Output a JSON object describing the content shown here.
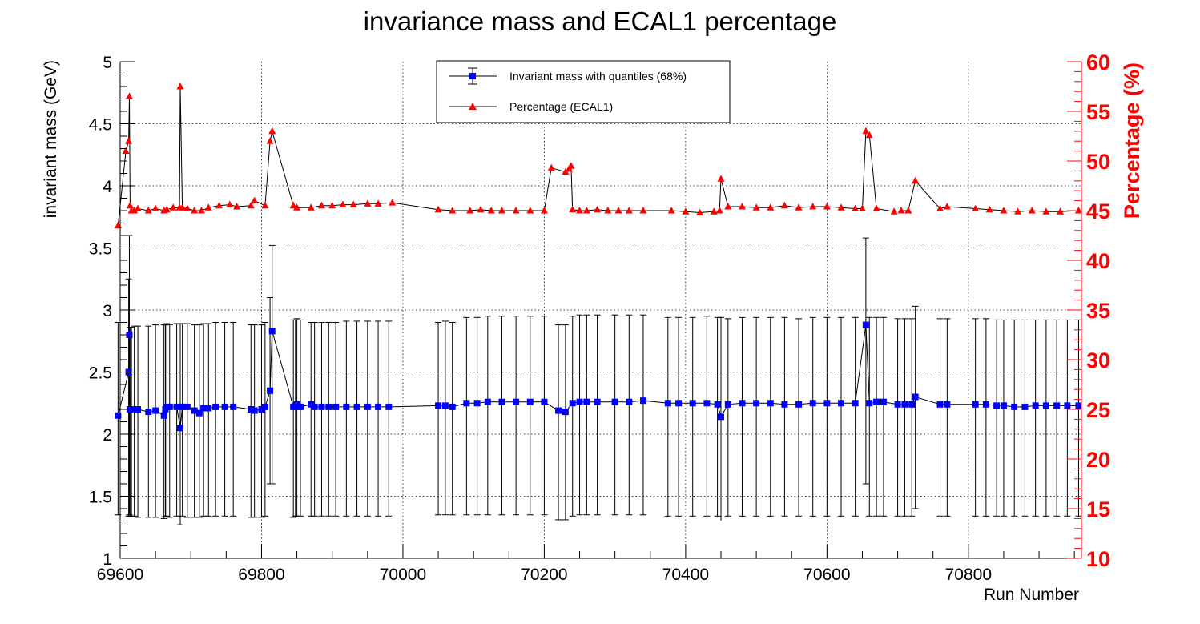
{
  "chart_data": {
    "type": "line",
    "title": "invariance mass and ECAL1 percentage",
    "xlabel": "Run Number",
    "ylabel": "invariant mass (GeV)",
    "y2label": "Percentage (%)",
    "xlim": [
      69600,
      70960
    ],
    "ylim": [
      1,
      5
    ],
    "y2lim": [
      10,
      60
    ],
    "xticks": [
      69600,
      69800,
      70000,
      70200,
      70400,
      70600,
      70800
    ],
    "yticks": [
      1,
      1.5,
      2,
      2.5,
      3,
      3.5,
      4,
      4.5,
      5
    ],
    "yticklabels": [
      "1",
      "1.5",
      "2",
      "2.5",
      "3",
      "3.5",
      "4",
      "4.5",
      "5"
    ],
    "y2ticks": [
      10,
      15,
      20,
      25,
      30,
      35,
      40,
      45,
      50,
      55,
      60
    ],
    "grid": true,
    "legend_position": "top-center",
    "legend": [
      {
        "name": "Invariant mass with quantiles (68%)",
        "marker": "square",
        "color": "#0000ff"
      },
      {
        "name": "Percentage (ECAL1)",
        "marker": "triangle",
        "color": "#ff0000"
      }
    ],
    "colors": {
      "mass": "#0000ff",
      "percentage": "#ff0000",
      "right_axis": "#ff0000",
      "errorbar": "#000000"
    },
    "series": [
      {
        "name": "Invariant mass with quantiles (68%)",
        "axis": "left",
        "x": [
          69597,
          69612,
          69613,
          69614,
          69616,
          69620,
          69625,
          69640,
          69650,
          69662,
          69664,
          69666,
          69670,
          69680,
          69685,
          69688,
          69695,
          69705,
          69712,
          69718,
          69725,
          69735,
          69748,
          69760,
          69785,
          69790,
          69800,
          69805,
          69812,
          69815,
          69845,
          69848,
          69850,
          69855,
          69870,
          69875,
          69885,
          69895,
          69905,
          69920,
          69935,
          69950,
          69965,
          69980,
          70050,
          70060,
          70070,
          70090,
          70105,
          70120,
          70140,
          70160,
          70180,
          70200,
          70220,
          70230,
          70240,
          70250,
          70260,
          70275,
          70300,
          70320,
          70340,
          70375,
          70390,
          70410,
          70430,
          70445,
          70450,
          70460,
          70480,
          70500,
          70520,
          70540,
          70560,
          70580,
          70600,
          70620,
          70640,
          70655,
          70660,
          70670,
          70680,
          70700,
          70710,
          70720,
          70725,
          70760,
          70770,
          70810,
          70825,
          70840,
          70850,
          70865,
          70880,
          70895,
          70910,
          70925,
          70940,
          70956
        ],
        "y": [
          2.15,
          2.5,
          2.8,
          2.2,
          2.2,
          2.2,
          2.2,
          2.18,
          2.19,
          2.15,
          2.2,
          2.22,
          2.22,
          2.22,
          2.05,
          2.22,
          2.22,
          2.19,
          2.17,
          2.21,
          2.21,
          2.22,
          2.22,
          2.22,
          2.2,
          2.19,
          2.2,
          2.22,
          2.35,
          2.83,
          2.22,
          2.22,
          2.24,
          2.22,
          2.24,
          2.22,
          2.22,
          2.22,
          2.22,
          2.22,
          2.22,
          2.22,
          2.22,
          2.22,
          2.23,
          2.23,
          2.22,
          2.25,
          2.25,
          2.26,
          2.26,
          2.26,
          2.26,
          2.26,
          2.19,
          2.18,
          2.25,
          2.26,
          2.26,
          2.26,
          2.26,
          2.26,
          2.27,
          2.25,
          2.25,
          2.25,
          2.25,
          2.24,
          2.14,
          2.24,
          2.25,
          2.25,
          2.25,
          2.24,
          2.24,
          2.25,
          2.25,
          2.25,
          2.25,
          2.88,
          2.25,
          2.26,
          2.26,
          2.24,
          2.24,
          2.24,
          2.3,
          2.24,
          2.24,
          2.24,
          2.24,
          2.23,
          2.23,
          2.22,
          2.22,
          2.23,
          2.23,
          2.23,
          2.23,
          2.23
        ],
        "y_low": [
          1.35,
          1.34,
          1.35,
          1.34,
          1.34,
          1.34,
          1.33,
          1.33,
          1.33,
          1.32,
          1.34,
          1.34,
          1.33,
          1.34,
          1.27,
          1.34,
          1.33,
          1.33,
          1.33,
          1.34,
          1.34,
          1.34,
          1.34,
          1.34,
          1.33,
          1.33,
          1.33,
          1.34,
          1.6,
          1.6,
          1.33,
          1.34,
          1.34,
          1.34,
          1.34,
          1.34,
          1.34,
          1.34,
          1.34,
          1.34,
          1.34,
          1.34,
          1.34,
          1.34,
          1.35,
          1.35,
          1.35,
          1.35,
          1.35,
          1.35,
          1.35,
          1.35,
          1.35,
          1.35,
          1.31,
          1.31,
          1.34,
          1.35,
          1.35,
          1.35,
          1.35,
          1.35,
          1.35,
          1.34,
          1.34,
          1.34,
          1.34,
          1.34,
          1.3,
          1.34,
          1.34,
          1.34,
          1.34,
          1.34,
          1.34,
          1.34,
          1.34,
          1.34,
          1.34,
          1.6,
          1.34,
          1.34,
          1.34,
          1.34,
          1.34,
          1.34,
          1.4,
          1.34,
          1.34,
          1.34,
          1.34,
          1.34,
          1.34,
          1.34,
          1.34,
          1.34,
          1.34,
          1.34,
          1.34,
          1.34
        ],
        "y_high": [
          2.9,
          3.25,
          3.6,
          2.86,
          2.86,
          2.87,
          2.87,
          2.87,
          2.88,
          2.88,
          2.88,
          2.89,
          2.88,
          2.89,
          2.89,
          2.89,
          2.89,
          2.88,
          2.88,
          2.89,
          2.89,
          2.9,
          2.9,
          2.9,
          2.88,
          2.88,
          2.88,
          2.9,
          3.1,
          3.52,
          2.92,
          2.92,
          2.93,
          2.92,
          2.9,
          2.9,
          2.9,
          2.9,
          2.9,
          2.91,
          2.91,
          2.91,
          2.91,
          2.91,
          2.9,
          2.91,
          2.9,
          2.94,
          2.94,
          2.95,
          2.95,
          2.95,
          2.95,
          2.95,
          2.88,
          2.88,
          2.95,
          2.96,
          2.96,
          2.96,
          2.96,
          2.96,
          2.96,
          2.94,
          2.94,
          2.94,
          2.95,
          2.94,
          2.94,
          2.93,
          2.94,
          2.94,
          2.94,
          2.94,
          2.93,
          2.94,
          2.94,
          2.94,
          2.94,
          3.58,
          2.94,
          2.94,
          2.94,
          2.93,
          2.93,
          2.93,
          3.03,
          2.93,
          2.93,
          2.93,
          2.93,
          2.92,
          2.92,
          2.92,
          2.92,
          2.92,
          2.92,
          2.92,
          2.92,
          2.92
        ]
      },
      {
        "name": "Percentage (ECAL1)",
        "axis": "right",
        "x": [
          69597,
          69608,
          69612,
          69613,
          69614,
          69616,
          69620,
          69625,
          69640,
          69650,
          69662,
          69666,
          69675,
          69684,
          69685,
          69688,
          69695,
          69705,
          69715,
          69725,
          69740,
          69755,
          69765,
          69785,
          69790,
          69805,
          69812,
          69815,
          69845,
          69850,
          69870,
          69885,
          69900,
          69915,
          69930,
          69950,
          69965,
          69985,
          70050,
          70070,
          70095,
          70110,
          70125,
          70140,
          70160,
          70180,
          70200,
          70210,
          70230,
          70235,
          70238,
          70240,
          70250,
          70260,
          70275,
          70290,
          70305,
          70320,
          70340,
          70380,
          70400,
          70420,
          70440,
          70448,
          70450,
          70460,
          70480,
          70500,
          70520,
          70540,
          70560,
          70580,
          70600,
          70620,
          70640,
          70650,
          70655,
          70660,
          70670,
          70695,
          70705,
          70715,
          70725,
          70760,
          70770,
          70810,
          70830,
          70850,
          70870,
          70890,
          70910,
          70930,
          70956
        ],
        "y": [
          43.5,
          51,
          52,
          56.5,
          45.5,
          45,
          45,
          45.2,
          45,
          45.2,
          45,
          45.1,
          45.3,
          45.3,
          57.5,
          45.3,
          45.2,
          45,
          45,
          45.3,
          45.5,
          45.6,
          45.4,
          45.5,
          46,
          45.5,
          52,
          53,
          45.5,
          45.3,
          45.3,
          45.5,
          45.5,
          45.6,
          45.6,
          45.7,
          45.7,
          45.8,
          45.1,
          45,
          45,
          45.1,
          45,
          45,
          45,
          45,
          45,
          49.3,
          48.9,
          49.2,
          49.5,
          45.1,
          45,
          45,
          45.1,
          45,
          45,
          45,
          45,
          45,
          44.9,
          44.8,
          44.9,
          45,
          48.2,
          45.4,
          45.4,
          45.3,
          45.3,
          45.5,
          45.3,
          45.4,
          45.4,
          45.3,
          45.2,
          45.2,
          53,
          52.6,
          45.2,
          44.9,
          45,
          45,
          48,
          45.2,
          45.4,
          45.2,
          45.1,
          45,
          44.9,
          45,
          44.9,
          44.9,
          45
        ]
      }
    ]
  }
}
